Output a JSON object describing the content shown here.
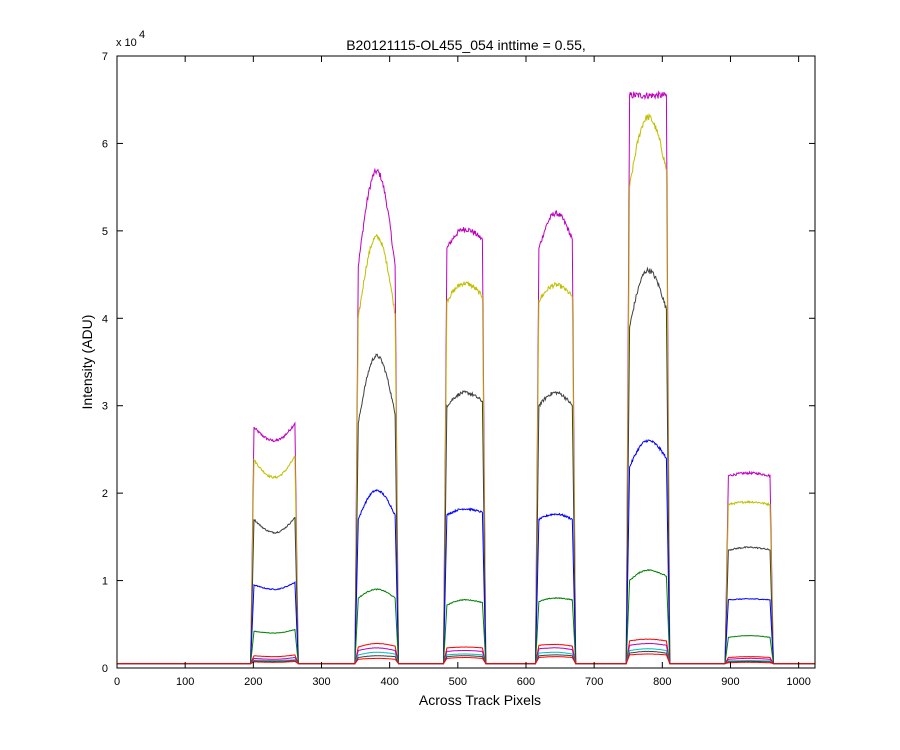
{
  "chart_data": {
    "type": "line",
    "title": "B20121115-OL455_054 inttime = 0.55,",
    "xlabel": "Across Track Pixels",
    "ylabel": "Intensity (ADU)",
    "y_exponent_label": "x 10",
    "y_exponent_power": "4",
    "xlim": [
      0,
      1024
    ],
    "ylim": [
      0,
      70000
    ],
    "x_ticks": [
      0,
      100,
      200,
      300,
      400,
      500,
      600,
      700,
      800,
      900,
      1000
    ],
    "y_ticks": [
      0,
      10000,
      20000,
      30000,
      40000,
      50000,
      60000,
      70000
    ],
    "y_tick_labels": [
      "0",
      "1",
      "2",
      "3",
      "4",
      "5",
      "6",
      "7"
    ],
    "grid": false,
    "legend": "none",
    "baseline": 500,
    "segments": [
      {
        "x_start": 197,
        "x_end": 265
      },
      {
        "x_start": 350,
        "x_end": 412
      },
      {
        "x_start": 480,
        "x_end": 540
      },
      {
        "x_start": 615,
        "x_end": 672
      },
      {
        "x_start": 748,
        "x_end": 810
      },
      {
        "x_start": 893,
        "x_end": 962
      }
    ],
    "series": [
      {
        "color": "#bf00bf",
        "segment_values": [
          [
            27500,
            26000,
            28000
          ],
          [
            46000,
            56800,
            46000
          ],
          [
            48000,
            50200,
            49000
          ],
          [
            48000,
            52000,
            49000
          ],
          [
            65500,
            65500,
            65500
          ],
          [
            22000,
            22300,
            22000
          ]
        ]
      },
      {
        "color": "#bfbf00",
        "segment_values": [
          [
            23800,
            21800,
            24200
          ],
          [
            40000,
            49300,
            40500
          ],
          [
            42000,
            44000,
            42500
          ],
          [
            42000,
            43800,
            42500
          ],
          [
            55000,
            63000,
            57000
          ],
          [
            18700,
            19000,
            18700
          ]
        ]
      },
      {
        "color": "#404040",
        "segment_values": [
          [
            17000,
            15500,
            17200
          ],
          [
            28000,
            35700,
            29000
          ],
          [
            30000,
            31500,
            30500
          ],
          [
            30000,
            31500,
            30000
          ],
          [
            39000,
            45500,
            41000
          ],
          [
            13500,
            13800,
            13500
          ]
        ]
      },
      {
        "color": "#0000ff",
        "segment_values": [
          [
            9500,
            9000,
            9800
          ],
          [
            17000,
            20300,
            17500
          ],
          [
            17500,
            18200,
            17800
          ],
          [
            17000,
            17600,
            17000
          ],
          [
            23000,
            26000,
            24000
          ],
          [
            7800,
            7900,
            7800
          ]
        ]
      },
      {
        "color": "#007f00",
        "segment_values": [
          [
            4200,
            4000,
            4400
          ],
          [
            8000,
            9000,
            8000
          ],
          [
            7200,
            7800,
            7500
          ],
          [
            7600,
            8000,
            7800
          ],
          [
            10000,
            11200,
            10500
          ],
          [
            3500,
            3700,
            3500
          ]
        ]
      },
      {
        "color": "#ff0000",
        "segment_values": [
          [
            1400,
            1300,
            1500
          ],
          [
            2400,
            2800,
            2500
          ],
          [
            2300,
            2400,
            2300
          ],
          [
            2600,
            2700,
            2500
          ],
          [
            3100,
            3300,
            3100
          ],
          [
            1200,
            1300,
            1200
          ]
        ]
      },
      {
        "color": "#bf00bf",
        "segment_values": [
          [
            1100,
            1000,
            1200
          ],
          [
            2000,
            2300,
            2000
          ],
          [
            1900,
            2000,
            1900
          ],
          [
            2200,
            2300,
            2100
          ],
          [
            2600,
            2800,
            2600
          ],
          [
            1000,
            1100,
            1000
          ]
        ]
      },
      {
        "color": "#00bfbf",
        "segment_values": [
          [
            900,
            850,
            950
          ],
          [
            1500,
            1800,
            1600
          ],
          [
            1500,
            1600,
            1500
          ],
          [
            1700,
            1800,
            1600
          ],
          [
            2000,
            2200,
            2000
          ],
          [
            800,
            850,
            800
          ]
        ]
      },
      {
        "color": "#404040",
        "segment_values": [
          [
            800,
            750,
            850
          ],
          [
            1200,
            1400,
            1300
          ],
          [
            1300,
            1400,
            1300
          ],
          [
            1400,
            1500,
            1400
          ],
          [
            1700,
            1900,
            1700
          ],
          [
            700,
            750,
            700
          ]
        ]
      },
      {
        "color": "#ff0000",
        "segment_values": [
          [
            700,
            650,
            750
          ],
          [
            1000,
            1100,
            1000
          ],
          [
            1100,
            1200,
            1100
          ],
          [
            1200,
            1300,
            1200
          ],
          [
            1500,
            1600,
            1500
          ],
          [
            600,
            650,
            600
          ]
        ]
      }
    ]
  }
}
